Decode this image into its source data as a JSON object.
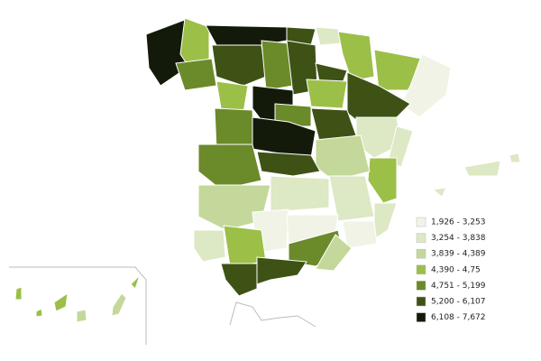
{
  "legend": {
    "items": [
      {
        "label": "1,926 - 3,253",
        "color": "#f1f3e6"
      },
      {
        "label": "3,254 - 3,838",
        "color": "#dde8c4"
      },
      {
        "label": "3,839 - 4,389",
        "color": "#c3d89a"
      },
      {
        "label": "4,390 - 4,75",
        "color": "#9cbf48"
      },
      {
        "label": "4,751 - 5,199",
        "color": "#6b8a2a"
      },
      {
        "label": "5,200 - 6,107",
        "color": "#3e5216"
      },
      {
        "label": "6,108 - 7,672",
        "color": "#141a0a"
      }
    ]
  }
}
